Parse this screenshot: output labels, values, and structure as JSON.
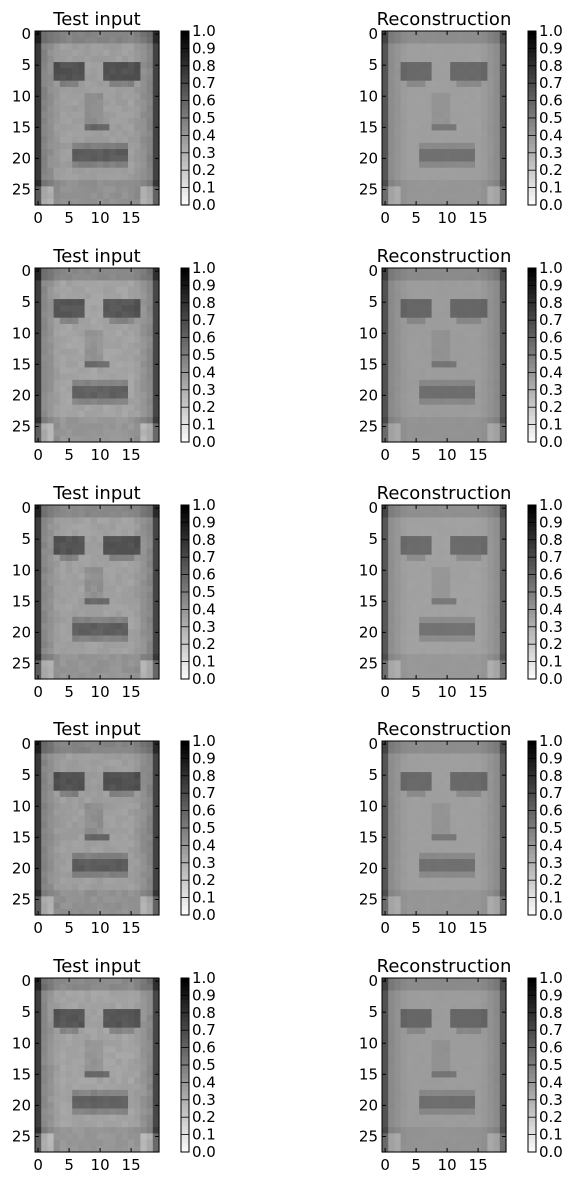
{
  "chart_data": {
    "type": "heatmap",
    "figure_layout": "5 rows x 2 columns of grayscale image panels, each with its own colorbar",
    "colormap": "gray_r (0 = white, 1 = black)",
    "image_shape": [
      28,
      20
    ],
    "x_ticks": [
      "0",
      "5",
      "10",
      "15"
    ],
    "y_ticks": [
      "0",
      "5",
      "10",
      "15",
      "20",
      "25"
    ],
    "colorbar": {
      "range": [
        0.0,
        1.0
      ],
      "ticks": [
        "0.0",
        "0.1",
        "0.2",
        "0.3",
        "0.4",
        "0.5",
        "0.6",
        "0.7",
        "0.8",
        "0.9",
        "1.0"
      ]
    },
    "panels": [
      {
        "row": 1,
        "col": 1,
        "title": "Test input",
        "kind": "input"
      },
      {
        "row": 1,
        "col": 2,
        "title": "Reconstruction",
        "kind": "reconstruction"
      },
      {
        "row": 2,
        "col": 1,
        "title": "Test input",
        "kind": "input"
      },
      {
        "row": 2,
        "col": 2,
        "title": "Reconstruction",
        "kind": "reconstruction"
      },
      {
        "row": 3,
        "col": 1,
        "title": "Test input",
        "kind": "input"
      },
      {
        "row": 3,
        "col": 2,
        "title": "Reconstruction",
        "kind": "reconstruction"
      },
      {
        "row": 4,
        "col": 1,
        "title": "Test input",
        "kind": "input"
      },
      {
        "row": 4,
        "col": 2,
        "title": "Reconstruction",
        "kind": "reconstruction"
      },
      {
        "row": 5,
        "col": 1,
        "title": "Test input",
        "kind": "input"
      },
      {
        "row": 5,
        "col": 2,
        "title": "Reconstruction",
        "kind": "reconstruction"
      }
    ]
  }
}
